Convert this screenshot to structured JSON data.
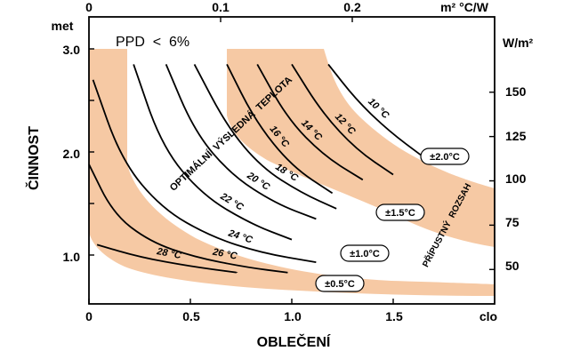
{
  "chart_data": {
    "type": "line",
    "title": "PPD  <  6%",
    "xlabel": "OBLEČENÍ",
    "ylabel": "ČINNOST",
    "x_unit_bottom": "clo",
    "y_unit_left": "met",
    "x2_unit_top": "m² °C/W",
    "y2_unit_right": "W/m²",
    "xlim": [
      0,
      2.0
    ],
    "ylim": [
      0.6,
      3.0
    ],
    "x_ticks_bottom": [
      "0",
      "0.5",
      "1.0",
      "1.5"
    ],
    "x_ticks_top": [
      "0",
      "0.1",
      "0.2"
    ],
    "y_ticks_left": [
      "1.0",
      "2.0",
      "3.0"
    ],
    "y_ticks_right": [
      "50",
      "75",
      "100",
      "125",
      "150"
    ],
    "band_labels": [
      "OPTIMÁLNÍ  VÝSLEDNÁ  TEPLOTA",
      "PŘÍPUSTNÝ  ROZSAH"
    ],
    "series": [
      {
        "name": "10 °C",
        "x": [
          1.18,
          1.32,
          1.48,
          1.65
        ],
        "y": [
          2.85,
          2.5,
          2.2,
          1.95
        ]
      },
      {
        "name": "12 °C",
        "x": [
          1.0,
          1.15,
          1.32,
          1.5
        ],
        "y": [
          2.85,
          2.38,
          2.02,
          1.78
        ]
      },
      {
        "name": "14 °C",
        "x": [
          0.83,
          0.98,
          1.16,
          1.35
        ],
        "y": [
          2.85,
          2.32,
          1.96,
          1.73
        ]
      },
      {
        "name": "16 °C",
        "x": [
          0.68,
          0.82,
          1.0,
          1.2
        ],
        "y": [
          2.85,
          2.3,
          1.86,
          1.6
        ]
      },
      {
        "name": "18 °C",
        "x": [
          0.52,
          0.68,
          0.85,
          1.05,
          1.22
        ],
        "y": [
          2.85,
          2.25,
          1.85,
          1.6,
          1.45
        ]
      },
      {
        "name": "20 °C",
        "x": [
          0.38,
          0.52,
          0.7,
          0.92,
          1.12
        ],
        "y": [
          2.85,
          2.2,
          1.78,
          1.5,
          1.35
        ]
      },
      {
        "name": "22 °C",
        "x": [
          0.22,
          0.36,
          0.56,
          0.8,
          1.0
        ],
        "y": [
          2.85,
          2.05,
          1.58,
          1.3,
          1.15
        ]
      },
      {
        "name": "24 °C",
        "x": [
          0.02,
          0.16,
          0.36,
          0.6,
          0.85,
          1.12
        ],
        "y": [
          2.7,
          1.92,
          1.45,
          1.18,
          1.02,
          0.93
        ]
      },
      {
        "name": "26 °C",
        "x": [
          0.0,
          0.12,
          0.3,
          0.52,
          0.78,
          0.98
        ],
        "y": [
          1.88,
          1.4,
          1.13,
          0.98,
          0.88,
          0.83
        ]
      },
      {
        "name": "28 °C",
        "x": [
          0.04,
          0.25,
          0.5,
          0.73
        ],
        "y": [
          1.1,
          0.98,
          0.89,
          0.83
        ]
      }
    ],
    "range_labels": [
      "±2.0°C",
      "±1.5°C",
      "±1.0°C",
      "±0.5°C"
    ]
  }
}
